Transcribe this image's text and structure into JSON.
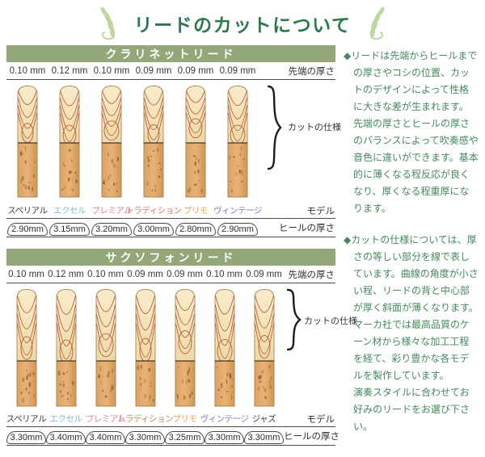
{
  "page": {
    "title": "リードのカットについて"
  },
  "colors": {
    "title_green": "#2b7a4c",
    "header_bar_green": "#93a779",
    "note_text_green": "#448a5a",
    "leaf_green": "#bdd79e",
    "contour_line": "#c05c3a"
  },
  "labels": {
    "tip_thickness": "先端の厚さ",
    "cut_spec": "カットの仕様",
    "model": "モデル",
    "heel_thickness": "ヒールの厚さ"
  },
  "sections": [
    {
      "title": "クラリネットリード",
      "models": [
        {
          "name": "スペリアル",
          "color": "#3c3c3c",
          "tip": "0.10 mm",
          "heel": "2.90mm"
        },
        {
          "name": "エクセル",
          "color": "#85b8dc",
          "tip": "0.12 mm",
          "heel": "3.15mm"
        },
        {
          "name": "プレミアム",
          "color": "#db8899",
          "tip": "0.10 mm",
          "heel": "3.20mm"
        },
        {
          "name": "トラディション",
          "color": "#e5775f",
          "tip": "0.09 mm",
          "heel": "3.00mm"
        },
        {
          "name": "プリモ",
          "color": "#efa04e",
          "tip": "0.09 mm",
          "heel": "2.80mm"
        },
        {
          "name": "ヴィンテージ",
          "color": "#8577c4",
          "tip": "0.09 mm",
          "heel": "2.90mm"
        }
      ]
    },
    {
      "title": "サクソフォンリード",
      "models": [
        {
          "name": "スペリアル",
          "color": "#3c3c3c",
          "tip": "0.10 mm",
          "heel": "3.30mm"
        },
        {
          "name": "エクセル",
          "color": "#85b8dc",
          "tip": "0.12 mm",
          "heel": "3.40mm"
        },
        {
          "name": "プレミアム",
          "color": "#db8899",
          "tip": "0.10 mm",
          "heel": "3.40mm"
        },
        {
          "name": "トラディション",
          "color": "#e5775f",
          "tip": "0.09 mm",
          "heel": "3.30mm"
        },
        {
          "name": "プリモ",
          "color": "#efa04e",
          "tip": "0.09 mm",
          "heel": "3.25mm"
        },
        {
          "name": "ヴィンテージ",
          "color": "#8577c4",
          "tip": "0.10 mm",
          "heel": "3.30mm"
        },
        {
          "name": "ジャズ",
          "color": "#3c3c3c",
          "tip": "0.09 mm",
          "heel": "3.30mm"
        }
      ]
    }
  ],
  "notes": [
    {
      "bullet": "◆",
      "paragraphs": [
        "リードは先端からヒールまでの厚さやコシの位置、カットのデザインによって性格に大きな差が生まれます。",
        "先端の厚さとヒールの厚さのバランスによって吹奏感や音色に違いができます。基本的に薄くなる程反応が良くなり、厚くなる程重厚になります。"
      ]
    },
    {
      "bullet": "◆",
      "paragraphs": [
        "カットの仕様については、厚さの等しい部分を線で表しています。曲線の角度が小さい程、リードの背と中心部が厚く斜面が薄くなります。",
        "マーカ社では最高品質のケーン材から様々な加工工程を経て、彩り豊かな各モデルを製作しています。",
        "演奏スタイルに合わせてお好みのリードをお選び下さい。"
      ]
    }
  ]
}
